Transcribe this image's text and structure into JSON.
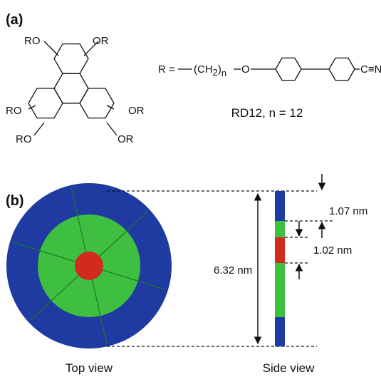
{
  "panel_a": {
    "label": "(a)",
    "core_labels": [
      "RO",
      "OR",
      "RO",
      "OR",
      "RO",
      "OR"
    ],
    "substituent": {
      "prefix": "R =",
      "chain_open": "(CH",
      "chain_subscript": "2",
      "chain_close": ")",
      "repeat": "n",
      "oxygen": "O",
      "end_group": "C≡N"
    },
    "compound": "RD12, n = 12"
  },
  "panel_b": {
    "label": "(b)",
    "diameter": "6.32 nm",
    "outer_thickness": "1.07 nm",
    "core_thickness": "1.02 nm",
    "top_view": "Top view",
    "side_view": "Side view"
  }
}
